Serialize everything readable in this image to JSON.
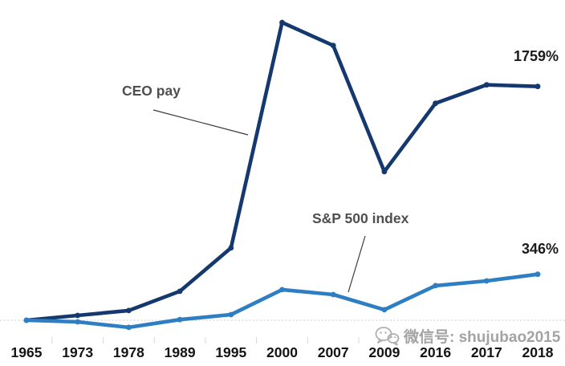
{
  "colors": {
    "ceo_line": "#15396f",
    "sp500_line": "#2d7ec3",
    "annotation_text": "#4f4f4f",
    "end_label_text": "#1b1b1b",
    "axis_label_text": "#141414",
    "baseline": "#d8d8d8",
    "tick": "#d8d8d8",
    "leader_line": "#3a3a3a",
    "watermark": "#a3a3a3"
  },
  "watermark": {
    "icon": "wechat-icon",
    "text": "微信号: shujubao2015"
  },
  "chart_data": {
    "type": "line",
    "title": "",
    "xlabel": "",
    "ylabel": "",
    "unit": "%",
    "categories": [
      "1965",
      "1973",
      "1978",
      "1989",
      "1995",
      "2000",
      "2007",
      "2009",
      "2016",
      "2017",
      "2018"
    ],
    "series": [
      {
        "name": "CEO pay",
        "color": "#15396f",
        "values": [
          0,
          36,
          73,
          218,
          544,
          2240,
          2067,
          1118,
          1632,
          1771,
          1759
        ],
        "end_label": "1759%"
      },
      {
        "name": "S&P 500 index",
        "color": "#2d7ec3",
        "values": [
          0,
          -12,
          -54,
          5,
          42,
          230,
          193,
          79,
          260,
          296,
          346
        ],
        "end_label": "346%"
      }
    ],
    "ylim": [
      -60,
      2300
    ],
    "baseline_value": 0,
    "grid": "zero-baseline dotted line only",
    "legend": "inline series annotations with leader lines",
    "markers": "filled dots at each data point"
  }
}
